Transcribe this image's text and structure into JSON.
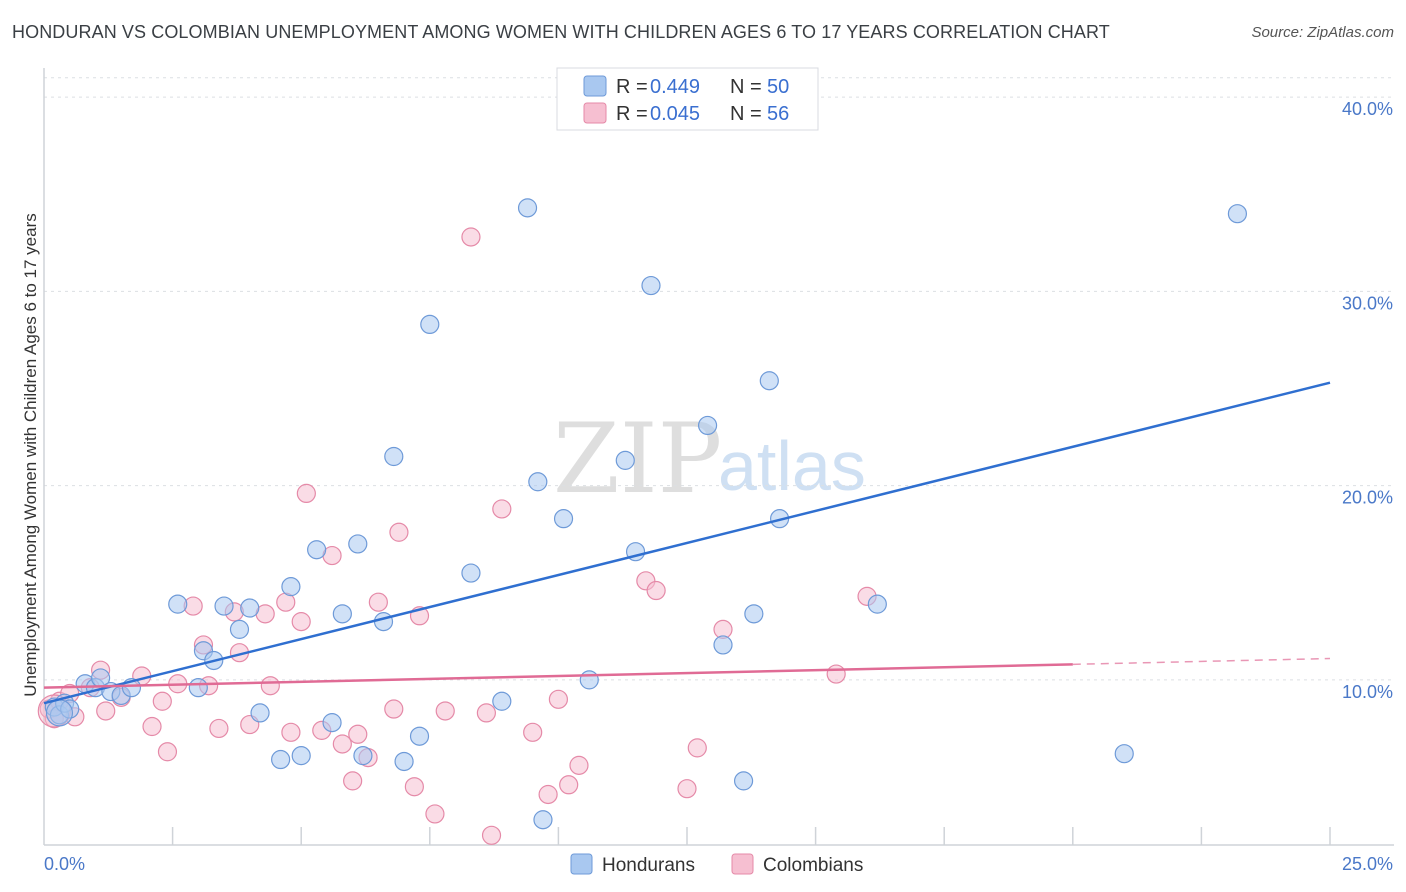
{
  "title": "HONDURAN VS COLOMBIAN UNEMPLOYMENT AMONG WOMEN WITH CHILDREN AGES 6 TO 17 YEARS CORRELATION CHART",
  "source": "Source: ZipAtlas.com",
  "watermark": {
    "zip": "ZIP",
    "atlas": "atlas"
  },
  "colors": {
    "blue_fill": "#a9c8f0",
    "blue_stroke": "#6e9ad8",
    "blue_line": "#2f6fd0",
    "pink_fill": "#f6bfd1",
    "pink_stroke": "#e58aa8",
    "pink_line": "#e06b95",
    "tick_text": "#4a78c8"
  },
  "legend": {
    "row1": {
      "r_label": "R =",
      "r_value": "0.449",
      "n_label": "N =",
      "n_value": "50"
    },
    "row2": {
      "r_label": "R =",
      "r_value": "0.045",
      "n_label": "N =",
      "n_value": "56"
    }
  },
  "bottom_legend": {
    "hondurans": "Hondurans",
    "colombians": "Colombians"
  },
  "chart_data": {
    "type": "scatter",
    "ylabel": "Unemployment Among Women with Children Ages 6 to 17 years",
    "xlabel": "",
    "xlim": [
      0,
      25
    ],
    "ylim": [
      1.5,
      41.5
    ],
    "x_tick_labels": [
      "0.0%",
      "25.0%"
    ],
    "y_ticks": [
      10,
      20,
      30,
      40
    ],
    "y_tick_labels": [
      "10.0%",
      "20.0%",
      "30.0%",
      "40.0%"
    ],
    "legend_position": "top-center",
    "series": [
      {
        "name": "Hondurans",
        "trend": {
          "x": [
            0,
            25
          ],
          "y": [
            8.8,
            25.3
          ]
        },
        "points": [
          [
            0.2,
            8.6
          ],
          [
            0.3,
            8.2
          ],
          [
            0.4,
            8.8
          ],
          [
            0.5,
            8.5
          ],
          [
            0.8,
            9.8
          ],
          [
            1.0,
            9.6
          ],
          [
            1.1,
            10.1
          ],
          [
            1.3,
            9.4
          ],
          [
            1.5,
            9.2
          ],
          [
            1.7,
            9.6
          ],
          [
            2.6,
            13.9
          ],
          [
            3.0,
            9.6
          ],
          [
            3.1,
            11.5
          ],
          [
            3.3,
            11.0
          ],
          [
            3.5,
            13.8
          ],
          [
            3.8,
            12.6
          ],
          [
            4.0,
            13.7
          ],
          [
            4.2,
            8.3
          ],
          [
            4.6,
            5.9
          ],
          [
            4.8,
            14.8
          ],
          [
            5.0,
            6.1
          ],
          [
            5.3,
            16.7
          ],
          [
            5.6,
            7.8
          ],
          [
            5.8,
            13.4
          ],
          [
            6.1,
            17.0
          ],
          [
            6.2,
            6.1
          ],
          [
            6.6,
            13.0
          ],
          [
            6.8,
            21.5
          ],
          [
            7.0,
            5.8
          ],
          [
            7.3,
            7.1
          ],
          [
            7.5,
            28.3
          ],
          [
            8.3,
            15.5
          ],
          [
            8.9,
            8.9
          ],
          [
            9.4,
            34.3
          ],
          [
            9.6,
            20.2
          ],
          [
            9.7,
            2.8
          ],
          [
            10.1,
            18.3
          ],
          [
            10.6,
            10.0
          ],
          [
            11.3,
            21.3
          ],
          [
            11.5,
            16.6
          ],
          [
            11.8,
            30.3
          ],
          [
            12.9,
            23.1
          ],
          [
            13.2,
            11.8
          ],
          [
            13.6,
            4.8
          ],
          [
            13.8,
            13.4
          ],
          [
            14.1,
            25.4
          ],
          [
            14.3,
            18.3
          ],
          [
            16.2,
            13.9
          ],
          [
            21.0,
            6.2
          ],
          [
            23.2,
            34.0
          ]
        ]
      },
      {
        "name": "Colombians",
        "trend": {
          "x": [
            0,
            20
          ],
          "y": [
            9.6,
            10.8
          ]
        },
        "trend_dashed": {
          "x": [
            20,
            25
          ],
          "y": [
            10.8,
            11.1
          ]
        },
        "points": [
          [
            0.1,
            8.5
          ],
          [
            0.2,
            8.0
          ],
          [
            0.3,
            8.9
          ],
          [
            0.5,
            9.3
          ],
          [
            0.6,
            8.1
          ],
          [
            0.9,
            9.6
          ],
          [
            1.1,
            10.5
          ],
          [
            1.2,
            8.4
          ],
          [
            1.5,
            9.1
          ],
          [
            1.9,
            10.2
          ],
          [
            2.1,
            7.6
          ],
          [
            2.3,
            8.9
          ],
          [
            2.4,
            6.3
          ],
          [
            2.6,
            9.8
          ],
          [
            2.9,
            13.8
          ],
          [
            3.1,
            11.8
          ],
          [
            3.2,
            9.7
          ],
          [
            3.4,
            7.5
          ],
          [
            3.7,
            13.5
          ],
          [
            3.8,
            11.4
          ],
          [
            4.0,
            7.7
          ],
          [
            4.3,
            13.4
          ],
          [
            4.4,
            9.7
          ],
          [
            4.7,
            14.0
          ],
          [
            4.8,
            7.3
          ],
          [
            5.0,
            13.0
          ],
          [
            5.1,
            19.6
          ],
          [
            5.4,
            7.4
          ],
          [
            5.6,
            16.4
          ],
          [
            5.8,
            6.7
          ],
          [
            6.0,
            4.8
          ],
          [
            6.1,
            7.2
          ],
          [
            6.3,
            6.0
          ],
          [
            6.5,
            14.0
          ],
          [
            6.8,
            8.5
          ],
          [
            6.9,
            17.6
          ],
          [
            7.2,
            4.5
          ],
          [
            7.3,
            13.3
          ],
          [
            7.6,
            3.1
          ],
          [
            7.8,
            8.4
          ],
          [
            8.3,
            32.8
          ],
          [
            8.6,
            8.3
          ],
          [
            8.7,
            2.0
          ],
          [
            8.9,
            18.8
          ],
          [
            9.5,
            7.3
          ],
          [
            9.8,
            4.1
          ],
          [
            10.0,
            9.0
          ],
          [
            10.2,
            4.6
          ],
          [
            10.4,
            5.6
          ],
          [
            11.7,
            15.1
          ],
          [
            11.9,
            14.6
          ],
          [
            12.5,
            4.4
          ],
          [
            12.7,
            6.5
          ],
          [
            13.2,
            12.6
          ],
          [
            15.4,
            10.3
          ],
          [
            16.0,
            14.3
          ]
        ]
      }
    ]
  }
}
